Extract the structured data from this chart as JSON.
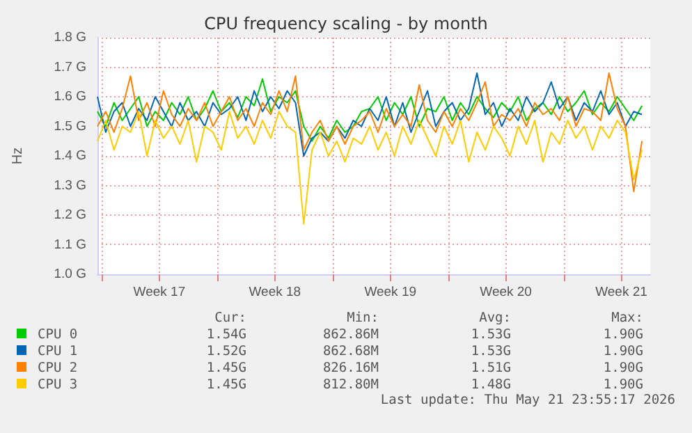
{
  "chart_data": {
    "type": "line",
    "title": "CPU frequency scaling - by month",
    "ylabel": "Hz",
    "x": [
      "2026-04-19T18:00",
      "2026-04-20T06:00",
      "2026-04-20T18:00",
      "2026-04-21T06:00",
      "2026-04-21T18:00",
      "2026-04-22T06:00",
      "2026-04-22T18:00",
      "2026-04-23T06:00",
      "2026-04-23T18:00",
      "2026-04-24T06:00",
      "2026-04-24T18:00",
      "2026-04-25T06:00",
      "2026-04-25T18:00",
      "2026-04-26T06:00",
      "2026-04-26T18:00",
      "2026-04-27T06:00",
      "2026-04-27T18:00",
      "2026-04-28T06:00",
      "2026-04-28T18:00",
      "2026-04-29T06:00",
      "2026-04-29T18:00",
      "2026-04-30T06:00",
      "2026-04-30T18:00",
      "2026-05-01T06:00",
      "2026-05-01T18:00",
      "2026-05-02T06:00",
      "2026-05-02T18:00",
      "2026-05-03T06:00",
      "2026-05-03T18:00",
      "2026-05-04T06:00",
      "2026-05-04T18:00",
      "2026-05-05T06:00",
      "2026-05-05T18:00",
      "2026-05-06T06:00",
      "2026-05-06T18:00",
      "2026-05-07T06:00",
      "2026-05-07T18:00",
      "2026-05-08T06:00",
      "2026-05-08T18:00",
      "2026-05-09T06:00",
      "2026-05-09T18:00",
      "2026-05-10T06:00",
      "2026-05-10T18:00",
      "2026-05-11T06:00",
      "2026-05-11T18:00",
      "2026-05-12T06:00",
      "2026-05-12T18:00",
      "2026-05-13T06:00",
      "2026-05-13T18:00",
      "2026-05-14T06:00",
      "2026-05-14T18:00",
      "2026-05-15T06:00",
      "2026-05-15T18:00",
      "2026-05-16T06:00",
      "2026-05-16T18:00",
      "2026-05-17T06:00",
      "2026-05-17T18:00",
      "2026-05-18T06:00",
      "2026-05-18T18:00",
      "2026-05-19T06:00",
      "2026-05-19T18:00",
      "2026-05-20T06:00",
      "2026-05-20T18:00",
      "2026-05-21T06:00",
      "2026-05-21T18:00",
      "2026-05-22T06:00",
      "2026-05-22T18:00"
    ],
    "xlim": [
      "2026-04-19T18:00",
      "2026-05-23T06:00"
    ],
    "xticks": [
      {
        "value": "2026-04-20",
        "label": null
      },
      {
        "value": "2026-04-23T12:00",
        "label": "Week 17"
      },
      {
        "value": "2026-04-27",
        "label": null
      },
      {
        "value": "2026-04-30T12:00",
        "label": "Week 18"
      },
      {
        "value": "2026-05-04",
        "label": null
      },
      {
        "value": "2026-05-07T12:00",
        "label": "Week 19"
      },
      {
        "value": "2026-05-11",
        "label": null
      },
      {
        "value": "2026-05-14T12:00",
        "label": "Week 20"
      },
      {
        "value": "2026-05-18",
        "label": null
      },
      {
        "value": "2026-05-21T12:00",
        "label": "Week 21"
      }
    ],
    "ylim": [
      1.0,
      1.8
    ],
    "yticks": [
      {
        "value": 1.0,
        "label": "1.0 G"
      },
      {
        "value": 1.1,
        "label": "1.1 G"
      },
      {
        "value": 1.2,
        "label": "1.2 G"
      },
      {
        "value": 1.3,
        "label": "1.3 G"
      },
      {
        "value": 1.4,
        "label": "1.4 G"
      },
      {
        "value": 1.5,
        "label": "1.5 G"
      },
      {
        "value": 1.6,
        "label": "1.6 G"
      },
      {
        "value": 1.7,
        "label": "1.7 G"
      },
      {
        "value": 1.8,
        "label": "1.8 G"
      }
    ],
    "grid": true,
    "legend": "bottom",
    "marker": "none",
    "line_style": "solid",
    "series": [
      {
        "name": "CPU 0",
        "color": "#00cc00",
        "values": [
          1.55,
          1.5,
          1.58,
          1.52,
          1.56,
          1.6,
          1.5,
          1.55,
          1.52,
          1.58,
          1.54,
          1.6,
          1.52,
          1.56,
          1.62,
          1.55,
          1.58,
          1.53,
          1.6,
          1.57,
          1.66,
          1.55,
          1.6,
          1.58,
          1.62,
          1.5,
          1.45,
          1.5,
          1.46,
          1.52,
          1.48,
          1.5,
          1.55,
          1.56,
          1.6,
          1.52,
          1.58,
          1.54,
          1.6,
          1.5,
          1.56,
          1.55,
          1.6,
          1.52,
          1.58,
          1.54,
          1.6,
          1.56,
          1.53,
          1.58,
          1.55,
          1.6,
          1.52,
          1.56,
          1.58,
          1.54,
          1.6,
          1.55,
          1.58,
          1.62,
          1.54,
          1.58,
          1.55,
          1.6,
          1.56,
          1.52,
          1.57
        ]
      },
      {
        "name": "CPU 1",
        "color": "#0066b3",
        "values": [
          1.6,
          1.48,
          1.55,
          1.58,
          1.5,
          1.56,
          1.52,
          1.6,
          1.55,
          1.5,
          1.58,
          1.52,
          1.55,
          1.5,
          1.58,
          1.54,
          1.56,
          1.6,
          1.52,
          1.62,
          1.55,
          1.6,
          1.56,
          1.62,
          1.58,
          1.4,
          1.46,
          1.48,
          1.45,
          1.5,
          1.46,
          1.52,
          1.5,
          1.56,
          1.52,
          1.6,
          1.5,
          1.58,
          1.48,
          1.55,
          1.62,
          1.5,
          1.55,
          1.58,
          1.52,
          1.56,
          1.68,
          1.54,
          1.58,
          1.5,
          1.56,
          1.52,
          1.6,
          1.55,
          1.58,
          1.65,
          1.56,
          1.6,
          1.52,
          1.58,
          1.55,
          1.62,
          1.54,
          1.58,
          1.5,
          1.55,
          1.54
        ]
      },
      {
        "name": "CPU 2",
        "color": "#ff8000",
        "values": [
          1.5,
          1.55,
          1.48,
          1.56,
          1.67,
          1.52,
          1.58,
          1.5,
          1.62,
          1.54,
          1.5,
          1.56,
          1.52,
          1.58,
          1.5,
          1.55,
          1.6,
          1.52,
          1.56,
          1.5,
          1.58,
          1.54,
          1.62,
          1.55,
          1.67,
          1.42,
          1.48,
          1.52,
          1.45,
          1.5,
          1.44,
          1.5,
          1.52,
          1.55,
          1.48,
          1.56,
          1.5,
          1.54,
          1.5,
          1.64,
          1.52,
          1.48,
          1.55,
          1.5,
          1.56,
          1.52,
          1.58,
          1.65,
          1.5,
          1.54,
          1.52,
          1.56,
          1.5,
          1.58,
          1.54,
          1.56,
          1.52,
          1.6,
          1.5,
          1.56,
          1.55,
          1.52,
          1.68,
          1.56,
          1.5,
          1.28,
          1.45
        ]
      },
      {
        "name": "CPU 3",
        "color": "#ffcc00",
        "values": [
          1.45,
          1.52,
          1.42,
          1.5,
          1.48,
          1.55,
          1.4,
          1.52,
          1.46,
          1.5,
          1.44,
          1.52,
          1.38,
          1.5,
          1.48,
          1.42,
          1.55,
          1.46,
          1.5,
          1.44,
          1.52,
          1.46,
          1.55,
          1.5,
          1.48,
          1.17,
          1.42,
          1.48,
          1.4,
          1.45,
          1.38,
          1.46,
          1.44,
          1.5,
          1.42,
          1.48,
          1.4,
          1.5,
          1.44,
          1.52,
          1.46,
          1.4,
          1.5,
          1.44,
          1.52,
          1.38,
          1.48,
          1.42,
          1.5,
          1.46,
          1.4,
          1.5,
          1.44,
          1.52,
          1.38,
          1.48,
          1.44,
          1.52,
          1.46,
          1.5,
          1.42,
          1.5,
          1.46,
          1.52,
          1.48,
          1.32,
          1.42
        ]
      }
    ],
    "annotations": [
      "Cur:",
      "Min:",
      "Avg:",
      "Max:",
      "1.54G",
      "862.86M",
      "1.53G",
      "1.90G",
      "1.52G",
      "862.68M",
      "1.53G",
      "1.90G",
      "1.45G",
      "826.16M",
      "1.51G",
      "1.90G",
      "1.45G",
      "812.80M",
      "1.48G",
      "1.90G",
      "Last update: Thu May 21 23:55:17 2026"
    ]
  }
}
